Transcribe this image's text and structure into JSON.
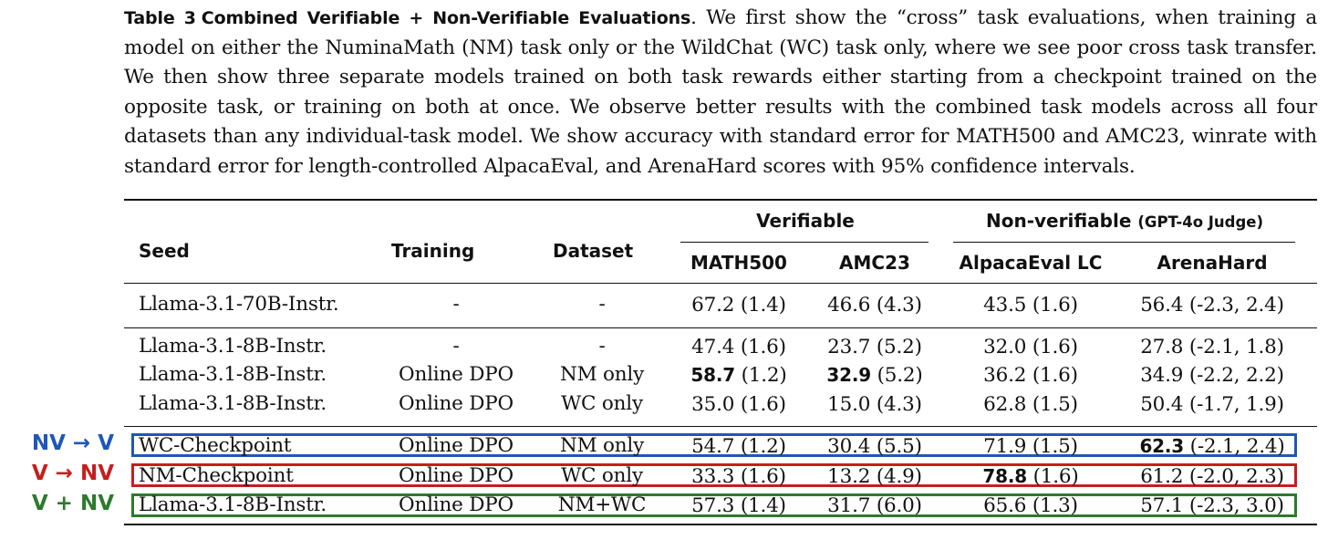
{
  "caption": {
    "label": "Table 3",
    "title": "Combined Verifiable + Non-Verifiable Evaluations",
    "text": ". We first show the “cross” task evaluations, when training a model on either the NuminaMath (NM) task only or the WildChat (WC) task only, where we see poor cross task transfer. We then show three separate models trained on both task rewards either starting from a checkpoint trained on the opposite task, or training on both at once. We observe better results with the combined task models across all four datasets than any individual-task model. We show accuracy with standard error for MATH500 and AMC23, winrate with standard error for length-controlled AlpacaEval, and ArenaHard scores with 95% confidence intervals."
  },
  "header": {
    "seed": "Seed",
    "training": "Training",
    "dataset": "Dataset",
    "group_verifiable": "Verifiable",
    "group_nonverifiable": "Non-verifiable",
    "group_nonverifiable_sub": "(GPT-4o Judge)",
    "math500": "MATH500",
    "amc23": "AMC23",
    "alpaca": "AlpacaEval LC",
    "arena": "ArenaHard"
  },
  "rows": [
    {
      "seed": "Llama-3.1-70B-Instr.",
      "training": "-",
      "dataset": "-",
      "math_val": "",
      "math": "67.2 (1.4)",
      "amc_val": "",
      "amc": "46.6 (4.3)",
      "alpaca_val": "",
      "alpaca": "43.5 (1.6)",
      "arena_val": "",
      "arena": "56.4 (-2.3, 2.4)"
    },
    {
      "seed": "Llama-3.1-8B-Instr.",
      "training": "-",
      "dataset": "-",
      "math_val": "",
      "math": "47.4 (1.6)",
      "amc_val": "",
      "amc": "23.7 (5.2)",
      "alpaca_val": "",
      "alpaca": "32.0 (1.6)",
      "arena_val": "",
      "arena": "27.8 (-2.1, 1.8)"
    },
    {
      "seed": "Llama-3.1-8B-Instr.",
      "training": "Online DPO",
      "dataset": "NM only",
      "math_val": "58.7",
      "math": " (1.2)",
      "amc_val": "32.9",
      "amc": " (5.2)",
      "alpaca_val": "",
      "alpaca": "36.2 (1.6)",
      "arena_val": "",
      "arena": "34.9 (-2.2, 2.2)"
    },
    {
      "seed": "Llama-3.1-8B-Instr.",
      "training": "Online DPO",
      "dataset": "WC only",
      "math_val": "",
      "math": "35.0 (1.6)",
      "amc_val": "",
      "amc": "15.0 (4.3)",
      "alpaca_val": "",
      "alpaca": "62.8 (1.5)",
      "arena_val": "",
      "arena": "50.4 (-1.7, 1.9)"
    },
    {
      "seed": "WC-Checkpoint",
      "training": "Online DPO",
      "dataset": "NM only",
      "math_val": "",
      "math": "54.7 (1.2)",
      "amc_val": "",
      "amc": "30.4 (5.5)",
      "alpaca_val": "",
      "alpaca": "71.9 (1.5)",
      "arena_val": "62.3",
      "arena": " (-2.1, 2.4)"
    },
    {
      "seed": "NM-Checkpoint",
      "training": "Online DPO",
      "dataset": "WC only",
      "math_val": "",
      "math": "33.3 (1.6)",
      "amc_val": "",
      "amc": "13.2 (4.9)",
      "alpaca_val": "78.8",
      "alpaca": " (1.6)",
      "arena_val": "",
      "arena": "61.2 (-2.0, 2.3)"
    },
    {
      "seed": "Llama-3.1-8B-Instr.",
      "training": "Online DPO",
      "dataset": "NM+WC",
      "math_val": "",
      "math": "57.3 (1.4)",
      "amc_val": "",
      "amc": "31.7 (6.0)",
      "alpaca_val": "",
      "alpaca": "65.6 (1.3)",
      "arena_val": "",
      "arena": "57.1 (-2.3, 3.0)"
    }
  ],
  "side_labels": [
    {
      "text": "NV → V",
      "color": "#1f57b8"
    },
    {
      "text": "V → NV",
      "color": "#c41f1f"
    },
    {
      "text": "V + NV",
      "color": "#2d7a2d"
    }
  ],
  "box_colors": [
    "#1f57b8",
    "#c41f1f",
    "#2d7a2d"
  ]
}
